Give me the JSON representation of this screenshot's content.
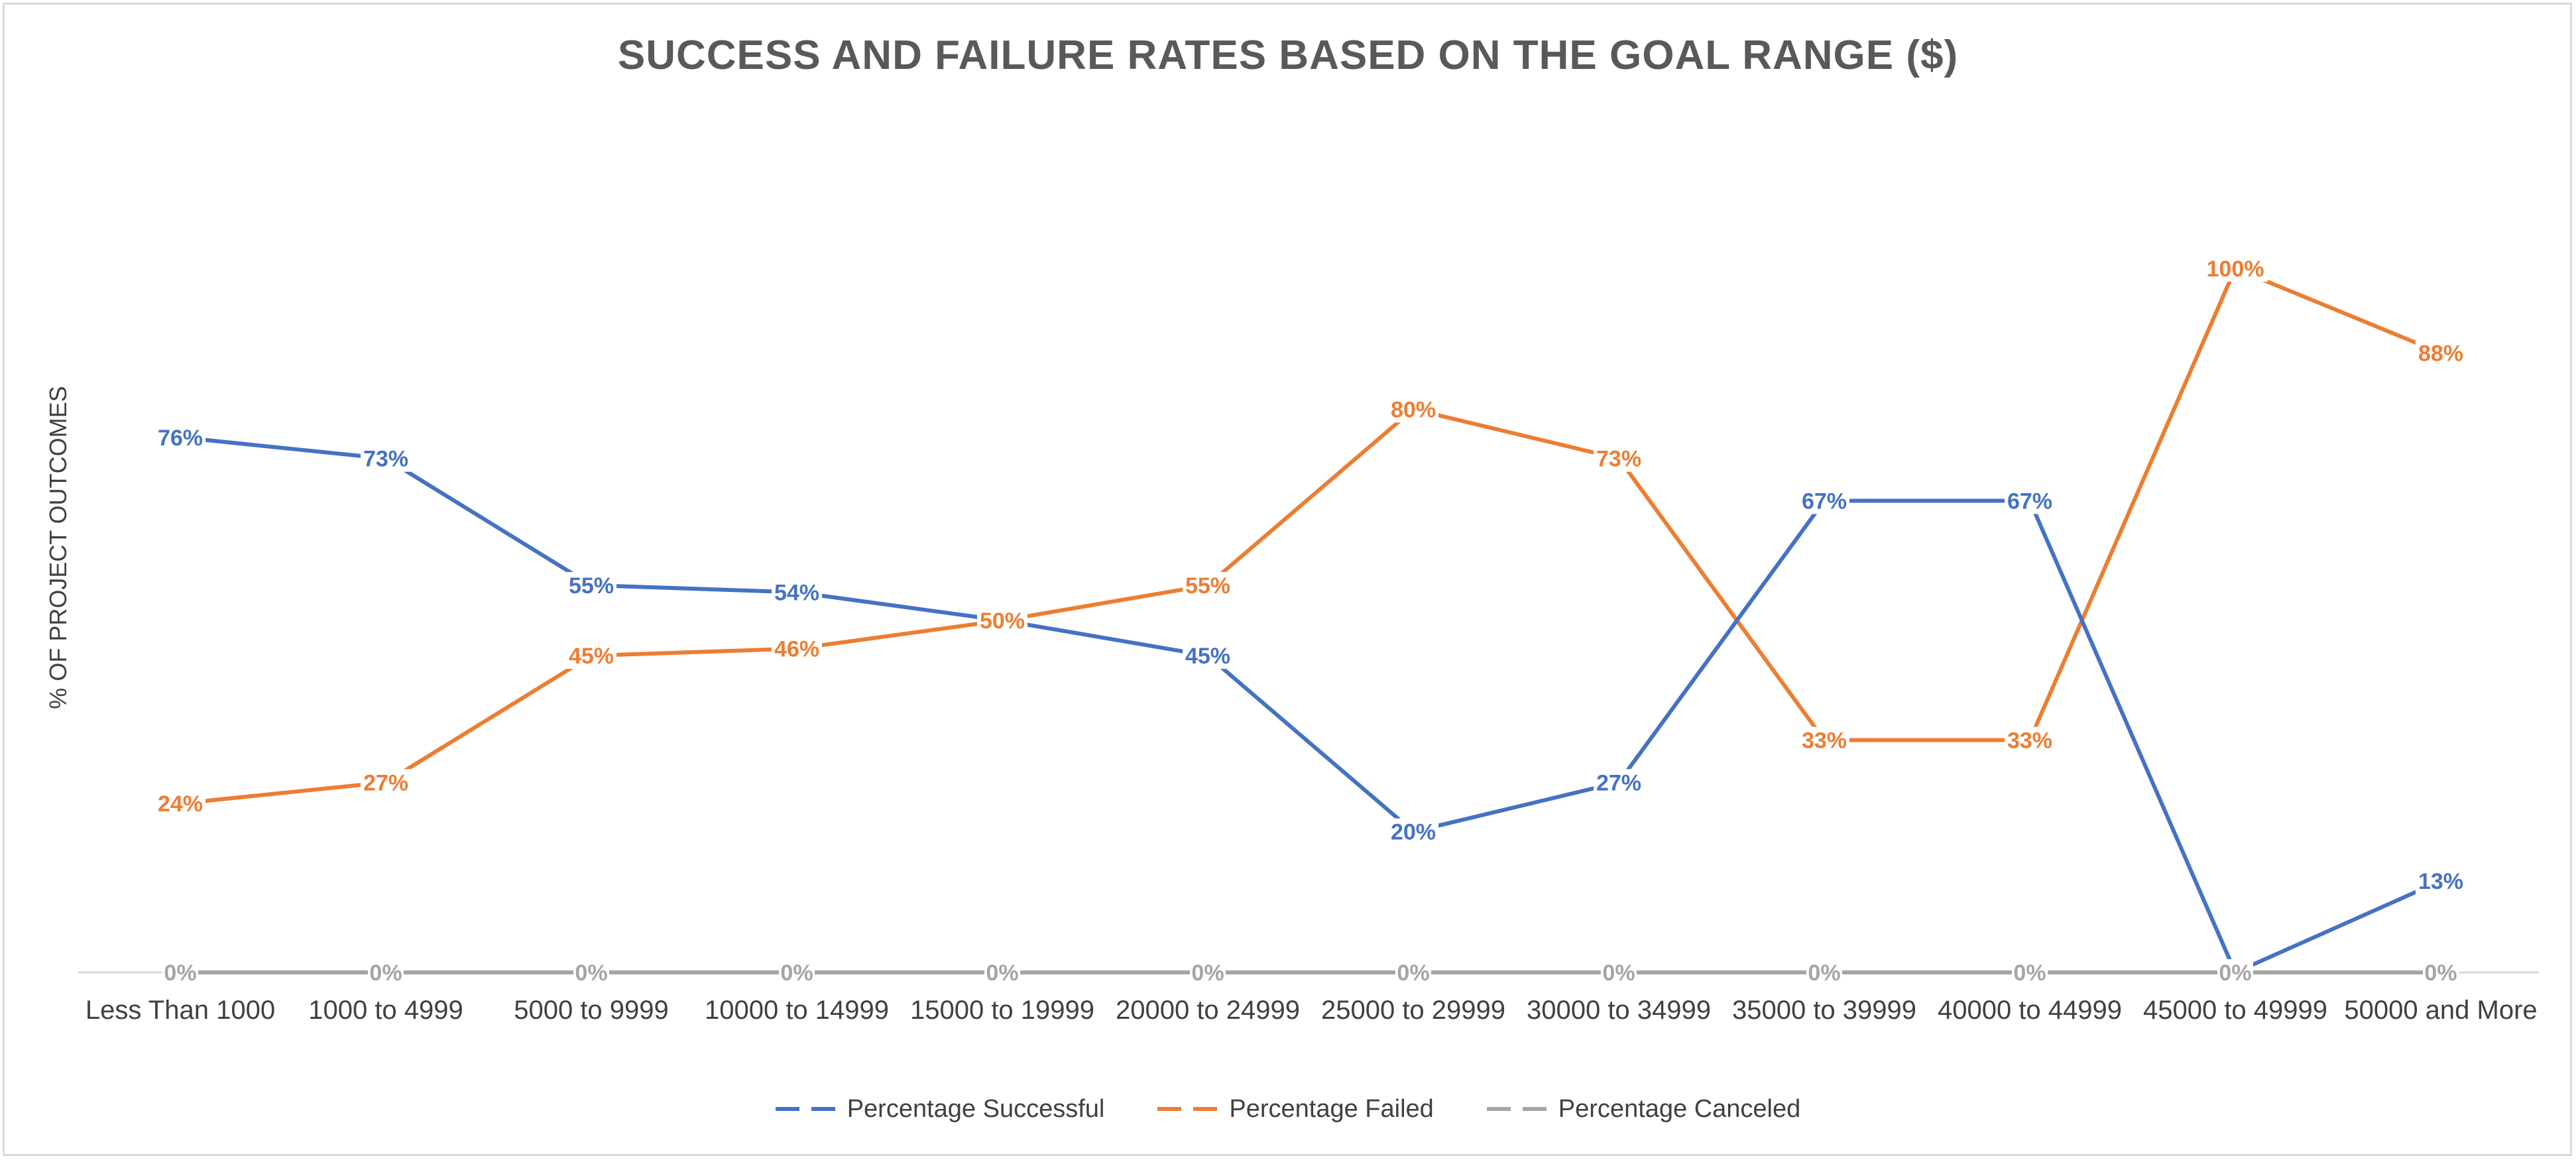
{
  "chart_data": {
    "type": "line",
    "title": "SUCCESS AND FAILURE RATES BASED ON THE GOAL RANGE ($)",
    "ylabel": "% OF PROJECT OUTCOMES",
    "xlabel": "",
    "ylim": [
      0,
      1
    ],
    "grid": false,
    "legend": "bottom",
    "categories": [
      "Less Than 1000",
      "1000 to 4999",
      "5000 to 9999",
      "10000 to 14999",
      "15000 to 19999",
      "20000 to 24999",
      "25000 to 29999",
      "30000 to 34999",
      "35000 to 39999",
      "40000 to 44999",
      "45000 to 49999",
      "50000 and More"
    ],
    "series": [
      {
        "name": "Percentage Successful",
        "color": "#4472c4",
        "values": [
          0.76,
          0.73,
          0.55,
          0.54,
          0.5,
          0.45,
          0.2,
          0.27,
          0.67,
          0.67,
          0.0,
          0.13
        ],
        "labels": [
          "76%",
          "73%",
          "55%",
          "54%",
          "",
          "45%",
          "20%",
          "27%",
          "67%",
          "67%",
          "",
          "13%"
        ]
      },
      {
        "name": "Percentage Failed",
        "color": "#ed7d31",
        "values": [
          0.24,
          0.27,
          0.45,
          0.46,
          0.5,
          0.55,
          0.8,
          0.73,
          0.33,
          0.33,
          1.0,
          0.88
        ],
        "labels": [
          "24%",
          "27%",
          "45%",
          "46%",
          "50%",
          "55%",
          "80%",
          "73%",
          "33%",
          "33%",
          "100%",
          "88%"
        ]
      },
      {
        "name": "Percentage Canceled",
        "color": "#a5a5a5",
        "values": [
          0,
          0,
          0,
          0,
          0,
          0,
          0,
          0,
          0,
          0,
          0,
          0
        ],
        "labels": [
          "0%",
          "0%",
          "0%",
          "0%",
          "0%",
          "0%",
          "0%",
          "0%",
          "0%",
          "0%",
          "0%",
          "0%"
        ]
      }
    ]
  }
}
